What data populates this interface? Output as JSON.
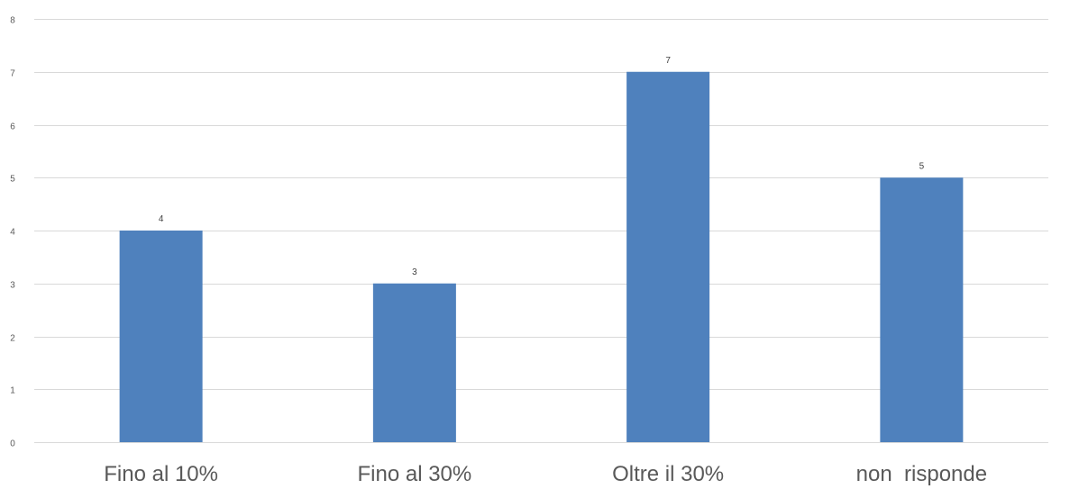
{
  "chart_data": {
    "type": "bar",
    "categories": [
      "Fino al 10%",
      "Fino al 30%",
      "Oltre il 30%",
      "non  risponde"
    ],
    "values": [
      4,
      3,
      7,
      5
    ],
    "title": "",
    "xlabel": "",
    "ylabel": "",
    "ylim": [
      0,
      8
    ],
    "yticks": [
      0,
      1,
      2,
      3,
      4,
      5,
      6,
      7,
      8
    ],
    "grid": true,
    "legend": "none",
    "data_labels": true,
    "bar_color": "#4f81bd"
  }
}
